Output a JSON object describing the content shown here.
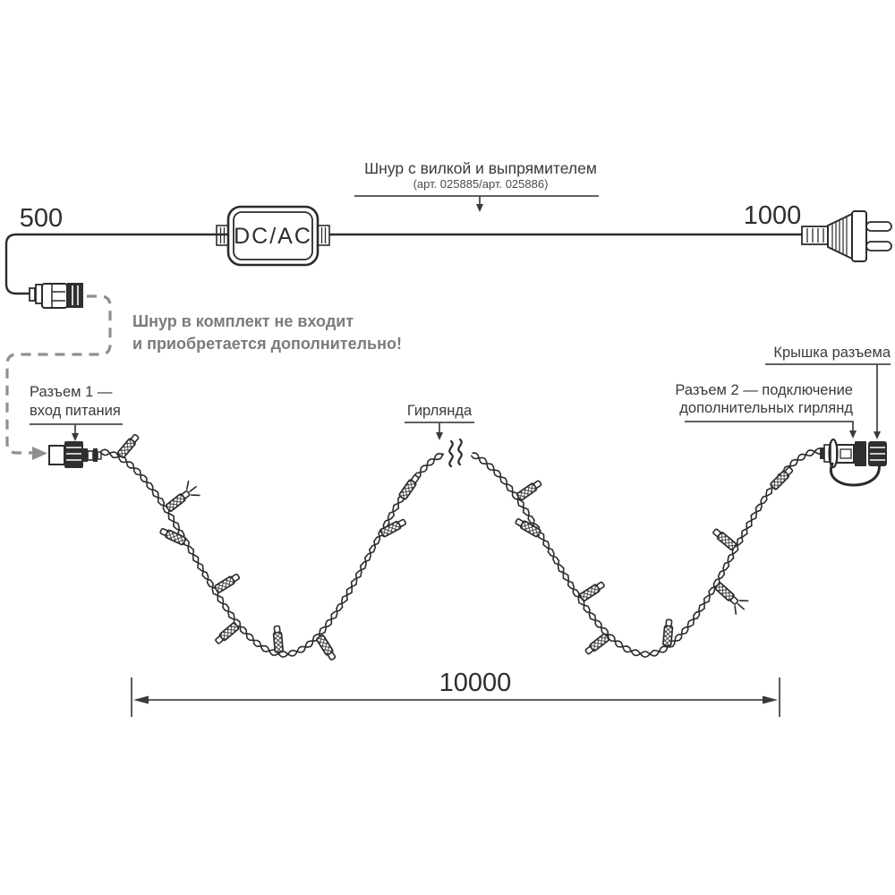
{
  "diagram": {
    "title_leader": {
      "label": "Шнур с вилкой и выпрямителем",
      "sublabel": "(арт. 025885/арт. 025886)"
    },
    "converter": {
      "label": "DC/AC"
    },
    "dimensions": {
      "left_cord_mm": "500",
      "right_cord_mm": "1000",
      "garland_total_mm": "10000"
    },
    "note": {
      "line1": "Шнур в комплект не входит",
      "line2": "и приобретается дополнительно!"
    },
    "connector1": {
      "line1": "Разъем 1 —",
      "line2": "вход питания"
    },
    "garland": {
      "label": "Гирлянда"
    },
    "connector2": {
      "line1": "Разъем 2 — подключение",
      "line2": "дополнительных гирлянд"
    },
    "cap": {
      "label": "Крышка разъема"
    },
    "colors": {
      "line": "#2b2b2b",
      "leader": "#4a4a4a",
      "note_gray": "#7b7b7b",
      "dashed_gray": "#8f8f8f",
      "dark_fill": "#2f2f2f"
    }
  }
}
